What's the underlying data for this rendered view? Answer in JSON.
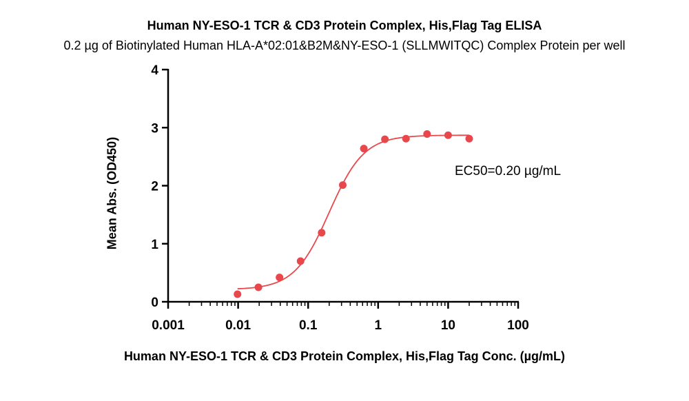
{
  "chart_data": {
    "type": "scatter",
    "title": "Human NY-ESO-1 TCR & CD3 Protein Complex, His,Flag Tag ELISA",
    "subtitle": "0.2 µg of Biotinylated Human HLA-A*02:01&B2M&NY-ESO-1 (SLLMWITQC) Complex Protein per well",
    "xlabel": "Human NY-ESO-1 TCR & CD3 Protein Complex, His,Flag Tag Conc. (µg/mL)",
    "ylabel": "Mean Abs. (OD450)",
    "x_scale": "log",
    "xlim": [
      0.001,
      100
    ],
    "ylim": [
      0,
      4
    ],
    "x_ticks": [
      0.001,
      0.01,
      0.1,
      1,
      10,
      100
    ],
    "x_tick_labels": [
      "0.001",
      "0.01",
      "0.1",
      "1",
      "10",
      "100"
    ],
    "y_ticks": [
      0,
      1,
      2,
      3,
      4
    ],
    "y_tick_labels": [
      "0",
      "1",
      "2",
      "3",
      "4"
    ],
    "grid": false,
    "series": [
      {
        "x": [
          0.0098,
          0.0195,
          0.039,
          0.078,
          0.156,
          0.3125,
          0.625,
          1.25,
          2.5,
          5,
          10,
          20
        ],
        "y": [
          0.13,
          0.25,
          0.42,
          0.7,
          1.19,
          2.01,
          2.64,
          2.8,
          2.81,
          2.89,
          2.87,
          2.81
        ],
        "color": "#e8474b",
        "fit": {
          "model": "4PL",
          "bottom": 0.21,
          "top": 2.87,
          "ec50": 0.2,
          "hill": 1.75
        }
      }
    ],
    "annotation": "EC50=0.20 µg/mL"
  }
}
